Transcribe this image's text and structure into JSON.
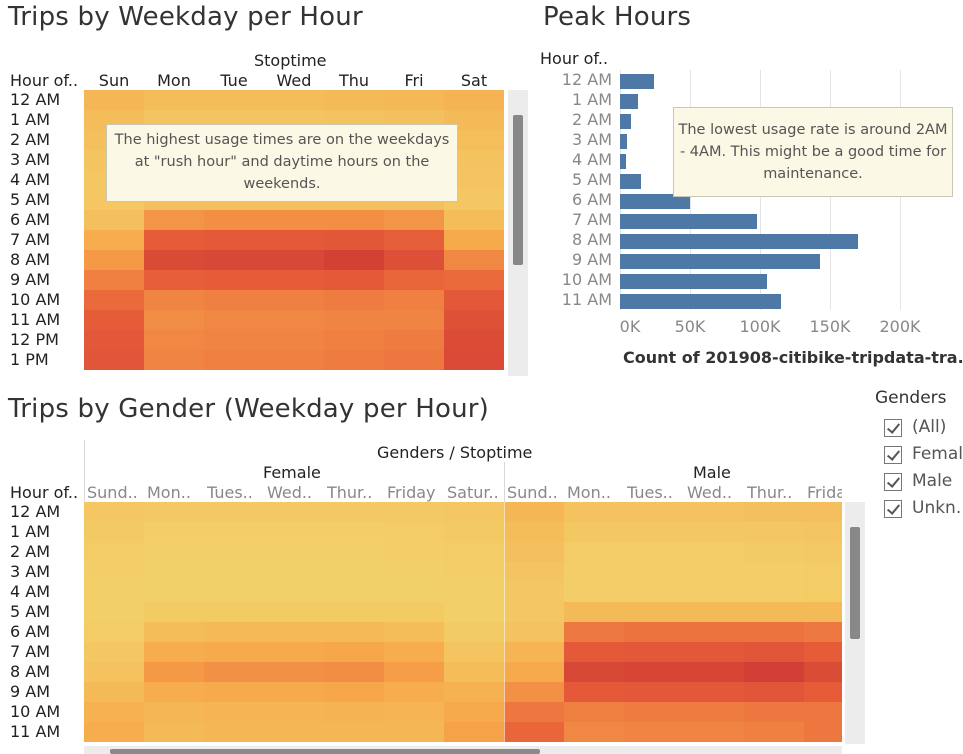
{
  "chart_data": [
    {
      "type": "heatmap",
      "title": "Trips by Weekday per Hour",
      "column_header": "Stoptime",
      "row_header": "Hour of..",
      "columns": [
        "Sun",
        "Mon",
        "Tue",
        "Wed",
        "Thu",
        "Fri",
        "Sat"
      ],
      "rows": [
        "12 AM",
        "1 AM",
        "2 AM",
        "3 AM",
        "4 AM",
        "5 AM",
        "6 AM",
        "7 AM",
        "8 AM",
        "9 AM",
        "10 AM",
        "11 AM",
        "12 PM",
        "1 PM"
      ],
      "values": [
        [
          0.22,
          0.18,
          0.18,
          0.18,
          0.2,
          0.21,
          0.25
        ],
        [
          0.18,
          0.12,
          0.12,
          0.12,
          0.14,
          0.15,
          0.2
        ],
        [
          0.15,
          0.08,
          0.08,
          0.08,
          0.1,
          0.11,
          0.17
        ],
        [
          0.12,
          0.06,
          0.06,
          0.06,
          0.07,
          0.08,
          0.14
        ],
        [
          0.1,
          0.06,
          0.06,
          0.06,
          0.07,
          0.08,
          0.12
        ],
        [
          0.1,
          0.15,
          0.15,
          0.15,
          0.15,
          0.15,
          0.1
        ],
        [
          0.15,
          0.42,
          0.45,
          0.45,
          0.45,
          0.42,
          0.18
        ],
        [
          0.3,
          0.7,
          0.72,
          0.72,
          0.75,
          0.68,
          0.32
        ],
        [
          0.4,
          0.85,
          0.88,
          0.88,
          0.95,
          0.82,
          0.48
        ],
        [
          0.52,
          0.68,
          0.7,
          0.7,
          0.72,
          0.64,
          0.62
        ],
        [
          0.62,
          0.5,
          0.52,
          0.52,
          0.54,
          0.52,
          0.74
        ],
        [
          0.7,
          0.46,
          0.48,
          0.48,
          0.5,
          0.5,
          0.8
        ],
        [
          0.74,
          0.48,
          0.5,
          0.5,
          0.52,
          0.54,
          0.84
        ],
        [
          0.76,
          0.5,
          0.52,
          0.52,
          0.54,
          0.56,
          0.86
        ]
      ],
      "color_scale": [
        "#f2d46c",
        "#f7a84a",
        "#e8603a",
        "#cf3a33"
      ],
      "annotation": "The highest usage times are on the weekdays at \"rush hour\" and daytime hours on the weekends."
    },
    {
      "type": "bar",
      "orientation": "horizontal",
      "title": "Peak Hours",
      "row_header": "Hour of..",
      "categories": [
        "12 AM",
        "1 AM",
        "2 AM",
        "3 AM",
        "4 AM",
        "5 AM",
        "6 AM",
        "7 AM",
        "8 AM",
        "9 AM",
        "10 AM",
        "11 AM"
      ],
      "values": [
        24000,
        13000,
        8000,
        5000,
        4500,
        15000,
        50000,
        98000,
        170000,
        143000,
        105000,
        115000
      ],
      "xlabel": "Count of 201908-citibike-tripdata-tra..",
      "xlim": [
        0,
        225000
      ],
      "xticks": [
        0,
        50000,
        100000,
        150000,
        200000
      ],
      "xtick_labels": [
        "0K",
        "50K",
        "100K",
        "150K",
        "200K"
      ],
      "grid": true,
      "bar_color": "#4e79a7",
      "annotation": "The lowest usage rate is around 2AM - 4AM. This might be a good time for maintenance."
    },
    {
      "type": "heatmap",
      "title": "Trips by Gender (Weekday per Hour)",
      "column_header": "Genders / Stoptime",
      "row_header": "Hour of..",
      "groups": [
        {
          "name": "Female",
          "columns": [
            "Sund..",
            "Mon..",
            "Tues..",
            "Wed..",
            "Thur..",
            "Friday",
            "Satur.."
          ]
        },
        {
          "name": "Male",
          "columns": [
            "Sund..",
            "Mon..",
            "Tues..",
            "Wed..",
            "Thur..",
            "Frida"
          ]
        }
      ],
      "rows": [
        "12 AM",
        "1 AM",
        "2 AM",
        "3 AM",
        "4 AM",
        "5 AM",
        "6 AM",
        "7 AM",
        "8 AM",
        "9 AM",
        "10 AM",
        "11 AM"
      ],
      "values": [
        [
          0.1,
          0.08,
          0.08,
          0.08,
          0.08,
          0.08,
          0.1,
          0.22,
          0.14,
          0.14,
          0.14,
          0.15,
          0.16
        ],
        [
          0.08,
          0.05,
          0.05,
          0.05,
          0.05,
          0.06,
          0.08,
          0.18,
          0.09,
          0.09,
          0.09,
          0.1,
          0.11
        ],
        [
          0.06,
          0.04,
          0.04,
          0.04,
          0.04,
          0.05,
          0.06,
          0.15,
          0.06,
          0.06,
          0.06,
          0.07,
          0.08
        ],
        [
          0.05,
          0.03,
          0.03,
          0.03,
          0.03,
          0.04,
          0.05,
          0.12,
          0.05,
          0.05,
          0.05,
          0.05,
          0.06
        ],
        [
          0.04,
          0.03,
          0.03,
          0.03,
          0.03,
          0.03,
          0.04,
          0.1,
          0.05,
          0.05,
          0.05,
          0.05,
          0.06
        ],
        [
          0.04,
          0.07,
          0.07,
          0.07,
          0.07,
          0.07,
          0.04,
          0.1,
          0.2,
          0.2,
          0.2,
          0.2,
          0.2
        ],
        [
          0.06,
          0.18,
          0.2,
          0.2,
          0.2,
          0.18,
          0.07,
          0.14,
          0.55,
          0.58,
          0.58,
          0.58,
          0.55
        ],
        [
          0.1,
          0.3,
          0.32,
          0.32,
          0.34,
          0.3,
          0.12,
          0.24,
          0.72,
          0.74,
          0.74,
          0.76,
          0.7
        ],
        [
          0.14,
          0.4,
          0.44,
          0.44,
          0.46,
          0.38,
          0.18,
          0.32,
          0.88,
          0.9,
          0.9,
          0.96,
          0.84
        ],
        [
          0.2,
          0.3,
          0.32,
          0.32,
          0.34,
          0.3,
          0.26,
          0.44,
          0.72,
          0.74,
          0.74,
          0.76,
          0.7
        ],
        [
          0.26,
          0.22,
          0.24,
          0.24,
          0.25,
          0.24,
          0.32,
          0.56,
          0.52,
          0.54,
          0.54,
          0.56,
          0.56
        ],
        [
          0.3,
          0.2,
          0.22,
          0.22,
          0.23,
          0.23,
          0.36,
          0.64,
          0.48,
          0.5,
          0.5,
          0.52,
          0.56
        ]
      ],
      "color_scale": [
        "#f2d46c",
        "#f7a84a",
        "#e8603a",
        "#cf3a33"
      ]
    }
  ],
  "legend": {
    "title": "Genders",
    "items": [
      "(All)",
      "Femal",
      "Male",
      "Unkn."
    ]
  }
}
